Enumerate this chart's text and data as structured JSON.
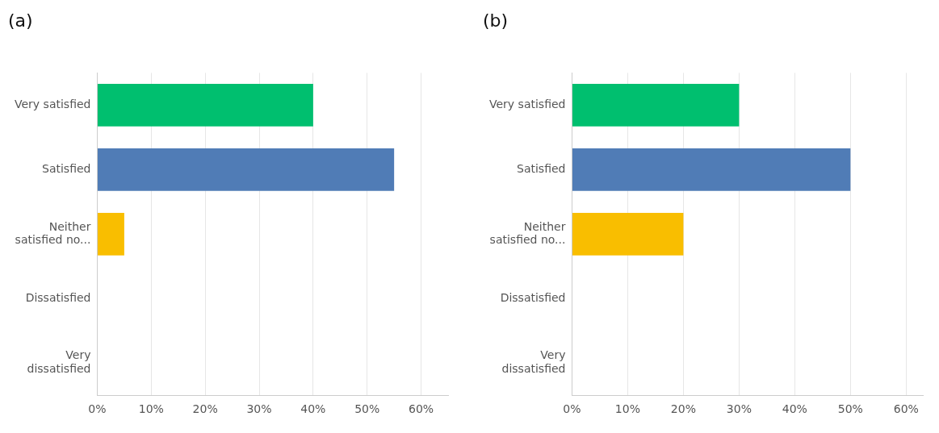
{
  "chart_data": [
    {
      "type": "bar",
      "title": "(a)",
      "orientation": "horizontal",
      "categories": [
        "Very satisfied",
        "Satisfied",
        "Neither satisfied no...",
        "Dissatisfied",
        "Very dissatisfied"
      ],
      "values": [
        40,
        55,
        5,
        0,
        0
      ],
      "colors": [
        "#00bf6f",
        "#507cb6",
        "#f9be00",
        "#f9be00",
        "#f9be00"
      ],
      "xlim": [
        0,
        65
      ],
      "xticks": [
        {
          "value": 0,
          "label": "0%"
        },
        {
          "value": 10,
          "label": "10%"
        },
        {
          "value": 20,
          "label": "20%"
        },
        {
          "value": 30,
          "label": "30%"
        },
        {
          "value": 40,
          "label": "40%"
        },
        {
          "value": 50,
          "label": "50%"
        },
        {
          "value": 60,
          "label": "60%"
        }
      ],
      "grid": "x",
      "legend": false
    },
    {
      "type": "bar",
      "title": "(b)",
      "orientation": "horizontal",
      "categories": [
        "Very satisfied",
        "Satisfied",
        "Neither satisfied no...",
        "Dissatisfied",
        "Very dissatisfied"
      ],
      "values": [
        30,
        50,
        20,
        0,
        0
      ],
      "colors": [
        "#00bf6f",
        "#507cb6",
        "#f9be00",
        "#f9be00",
        "#f9be00"
      ],
      "xlim": [
        0,
        63
      ],
      "xticks": [
        {
          "value": 0,
          "label": "0%"
        },
        {
          "value": 10,
          "label": "10%"
        },
        {
          "value": 20,
          "label": "20%"
        },
        {
          "value": 30,
          "label": "30%"
        },
        {
          "value": 40,
          "label": "40%"
        },
        {
          "value": 50,
          "label": "50%"
        },
        {
          "value": 60,
          "label": "60%"
        }
      ],
      "grid": "x",
      "legend": false
    }
  ]
}
